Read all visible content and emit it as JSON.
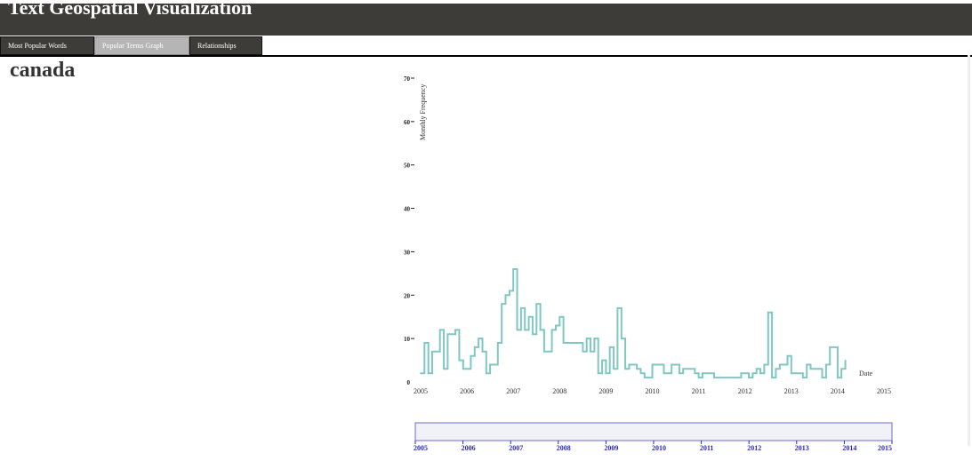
{
  "app": {
    "title": "Text Geospatial Visualization"
  },
  "tabs": [
    {
      "label": "Most Popular Words",
      "active": false
    },
    {
      "label": "Popular Terms Graph",
      "active": true
    },
    {
      "label": "Relationships",
      "active": false
    }
  ],
  "term": {
    "title": "canada"
  },
  "chart_data": {
    "type": "line",
    "title": "",
    "xlabel": "Date",
    "ylabel": "Monthly Frequency",
    "x_ticks": [
      "2005",
      "2006",
      "2007",
      "2008",
      "2009",
      "2010",
      "2011",
      "2012",
      "2013",
      "2014",
      "2015"
    ],
    "y_ticks": [
      0,
      10,
      20,
      30,
      40,
      50,
      60,
      70
    ],
    "xlim": [
      "2005-01",
      "2015-01"
    ],
    "ylim": [
      0,
      70
    ],
    "grid": false,
    "line_color": "#80c7c3",
    "series": [
      {
        "values": [
          [
            "2005-01",
            2
          ],
          [
            "2005-02",
            9
          ],
          [
            "2005-03",
            2
          ],
          [
            "2005-04",
            7
          ],
          [
            "2005-05",
            7
          ],
          [
            "2005-06",
            12
          ],
          [
            "2005-07",
            3
          ],
          [
            "2005-08",
            11
          ],
          [
            "2005-09",
            11
          ],
          [
            "2005-10",
            12
          ],
          [
            "2005-11",
            5
          ],
          [
            "2005-12",
            3
          ],
          [
            "2006-01",
            3
          ],
          [
            "2006-02",
            6
          ],
          [
            "2006-03",
            8
          ],
          [
            "2006-04",
            10
          ],
          [
            "2006-05",
            7
          ],
          [
            "2006-06",
            2
          ],
          [
            "2006-07",
            4
          ],
          [
            "2006-08",
            4
          ],
          [
            "2006-09",
            9
          ],
          [
            "2006-10",
            18
          ],
          [
            "2006-11",
            20
          ],
          [
            "2006-12",
            21
          ],
          [
            "2007-01",
            26
          ],
          [
            "2007-02",
            12
          ],
          [
            "2007-03",
            17
          ],
          [
            "2007-04",
            12
          ],
          [
            "2007-05",
            15
          ],
          [
            "2007-06",
            11
          ],
          [
            "2007-07",
            18
          ],
          [
            "2007-08",
            12
          ],
          [
            "2007-09",
            7
          ],
          [
            "2007-10",
            7
          ],
          [
            "2007-11",
            12
          ],
          [
            "2007-12",
            13
          ],
          [
            "2008-01",
            15
          ],
          [
            "2008-02",
            9
          ],
          [
            "2008-03",
            9
          ],
          [
            "2008-04",
            9
          ],
          [
            "2008-05",
            9
          ],
          [
            "2008-06",
            9
          ],
          [
            "2008-07",
            7
          ],
          [
            "2008-08",
            10
          ],
          [
            "2008-09",
            7
          ],
          [
            "2008-10",
            10
          ],
          [
            "2008-11",
            2
          ],
          [
            "2008-12",
            5
          ],
          [
            "2009-01",
            2
          ],
          [
            "2009-02",
            8
          ],
          [
            "2009-03",
            3
          ],
          [
            "2009-04",
            17
          ],
          [
            "2009-05",
            10
          ],
          [
            "2009-06",
            3
          ],
          [
            "2009-07",
            4
          ],
          [
            "2009-08",
            4
          ],
          [
            "2009-09",
            3
          ],
          [
            "2009-10",
            2
          ],
          [
            "2009-11",
            1
          ],
          [
            "2009-12",
            1
          ],
          [
            "2010-01",
            4
          ],
          [
            "2010-02",
            4
          ],
          [
            "2010-03",
            4
          ],
          [
            "2010-04",
            2
          ],
          [
            "2010-05",
            2
          ],
          [
            "2010-06",
            4
          ],
          [
            "2010-07",
            4
          ],
          [
            "2010-08",
            2
          ],
          [
            "2010-09",
            3
          ],
          [
            "2010-10",
            3
          ],
          [
            "2010-11",
            3
          ],
          [
            "2010-12",
            2
          ],
          [
            "2011-01",
            1
          ],
          [
            "2011-02",
            2
          ],
          [
            "2011-03",
            2
          ],
          [
            "2011-04",
            2
          ],
          [
            "2011-05",
            1
          ],
          [
            "2011-06",
            1
          ],
          [
            "2011-07",
            1
          ],
          [
            "2011-08",
            1
          ],
          [
            "2011-09",
            1
          ],
          [
            "2011-10",
            1
          ],
          [
            "2011-11",
            1
          ],
          [
            "2011-12",
            2
          ],
          [
            "2012-01",
            2
          ],
          [
            "2012-02",
            1
          ],
          [
            "2012-03",
            2
          ],
          [
            "2012-04",
            3
          ],
          [
            "2012-05",
            2
          ],
          [
            "2012-06",
            4
          ],
          [
            "2012-07",
            16
          ],
          [
            "2012-08",
            1
          ],
          [
            "2012-09",
            3
          ],
          [
            "2012-10",
            4
          ],
          [
            "2012-11",
            4
          ],
          [
            "2012-12",
            6
          ],
          [
            "2013-01",
            2
          ],
          [
            "2013-02",
            2
          ],
          [
            "2013-03",
            2
          ],
          [
            "2013-04",
            1
          ],
          [
            "2013-05",
            4
          ],
          [
            "2013-06",
            3
          ],
          [
            "2013-07",
            3
          ],
          [
            "2013-08",
            3
          ],
          [
            "2013-09",
            1
          ],
          [
            "2013-10",
            4
          ],
          [
            "2013-11",
            8
          ],
          [
            "2013-12",
            8
          ],
          [
            "2014-01",
            1
          ],
          [
            "2014-02",
            3
          ],
          [
            "2014-03",
            5
          ]
        ]
      }
    ]
  },
  "brush": {
    "x_ticks": [
      "2005",
      "2006",
      "2007",
      "2008",
      "2009",
      "2010",
      "2011",
      "2012",
      "2013",
      "2014",
      "2015"
    ],
    "border_color": "#6b6bd6",
    "fill_color": "#f1f1f8",
    "label_color": "#2a2ab0"
  }
}
